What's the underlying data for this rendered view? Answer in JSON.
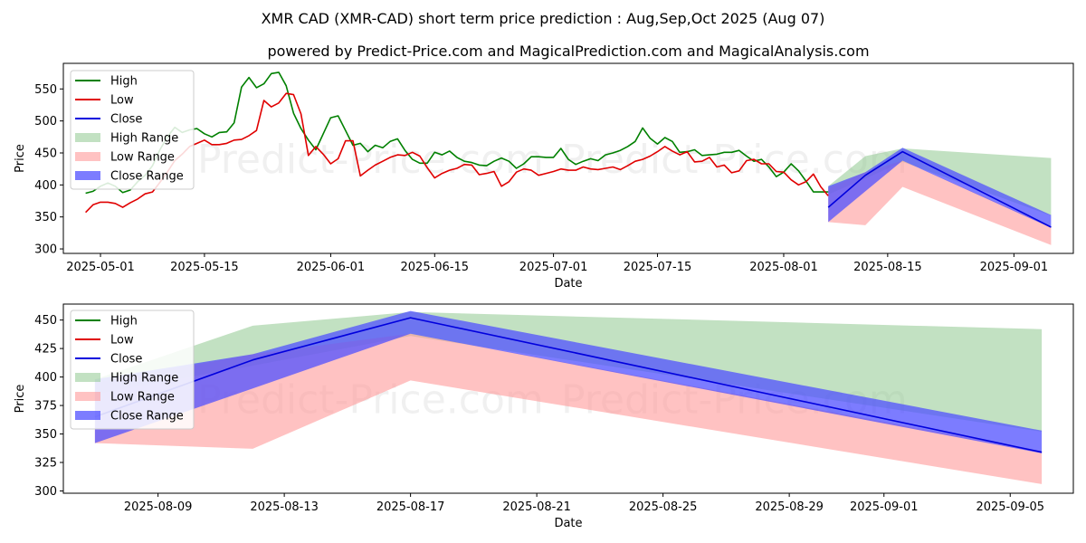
{
  "chart_data": [
    {
      "type": "line",
      "title": "XMR CAD (XMR-CAD) short term price prediction : Aug,Sep,Oct 2025 (Aug 07)",
      "subtitle": "powered by Predict-Price.com and MagicalPrediction.com and MagicalAnalysis.com",
      "watermark": "Predict-Price.com",
      "xlabel": "Date",
      "ylabel": "Price",
      "xlim": [
        "2025-04-26",
        "2025-09-09"
      ],
      "ylim": [
        293,
        590
      ],
      "xticks": [
        "2025-05-01",
        "2025-05-15",
        "2025-06-01",
        "2025-06-15",
        "2025-07-01",
        "2025-07-15",
        "2025-08-01",
        "2025-08-15",
        "2025-09-01"
      ],
      "yticks": [
        300,
        350,
        400,
        450,
        500,
        550
      ],
      "legend": {
        "position": "top-left",
        "entries": [
          "High",
          "Low",
          "Close",
          "High Range",
          "Low Range",
          "Close Range"
        ]
      },
      "colors": {
        "high": "#008000",
        "low": "#e00000",
        "close": "#0000dd",
        "high_range": "#8fc98f",
        "low_range": "#ff9a9a",
        "close_range": "#5050ff"
      },
      "series": [
        {
          "name": "High",
          "dates": [
            "2025-04-29",
            "2025-04-30",
            "2025-05-01",
            "2025-05-02",
            "2025-05-03",
            "2025-05-04",
            "2025-05-05",
            "2025-05-06",
            "2025-05-07",
            "2025-05-08",
            "2025-05-09",
            "2025-05-10",
            "2025-05-11",
            "2025-05-12",
            "2025-05-13",
            "2025-05-14",
            "2025-05-15",
            "2025-05-16",
            "2025-05-17",
            "2025-05-18",
            "2025-05-19",
            "2025-05-20",
            "2025-05-21",
            "2025-05-22",
            "2025-05-23",
            "2025-05-24",
            "2025-05-25",
            "2025-05-26",
            "2025-05-27",
            "2025-05-28",
            "2025-05-29",
            "2025-05-30",
            "2025-05-31",
            "2025-06-01",
            "2025-06-02",
            "2025-06-03",
            "2025-06-04",
            "2025-06-05",
            "2025-06-06",
            "2025-06-07",
            "2025-06-08",
            "2025-06-09",
            "2025-06-10",
            "2025-06-11",
            "2025-06-12",
            "2025-06-13",
            "2025-06-14",
            "2025-06-15",
            "2025-06-16",
            "2025-06-17",
            "2025-06-18",
            "2025-06-19",
            "2025-06-20",
            "2025-06-21",
            "2025-06-22",
            "2025-06-23",
            "2025-06-24",
            "2025-06-25",
            "2025-06-26",
            "2025-06-27",
            "2025-06-28",
            "2025-06-29",
            "2025-06-30",
            "2025-07-01",
            "2025-07-02",
            "2025-07-03",
            "2025-07-04",
            "2025-07-05",
            "2025-07-06",
            "2025-07-07",
            "2025-07-08",
            "2025-07-09",
            "2025-07-10",
            "2025-07-11",
            "2025-07-12",
            "2025-07-13",
            "2025-07-14",
            "2025-07-15",
            "2025-07-16",
            "2025-07-17",
            "2025-07-18",
            "2025-07-19",
            "2025-07-20",
            "2025-07-21",
            "2025-07-22",
            "2025-07-23",
            "2025-07-24",
            "2025-07-25",
            "2025-07-26",
            "2025-07-27",
            "2025-07-28",
            "2025-07-29",
            "2025-07-30",
            "2025-07-31",
            "2025-08-01",
            "2025-08-02",
            "2025-08-03",
            "2025-08-04",
            "2025-08-05",
            "2025-08-06",
            "2025-08-07"
          ],
          "values": [
            387,
            390,
            398,
            403,
            398,
            388,
            392,
            405,
            415,
            430,
            455,
            475,
            490,
            482,
            486,
            488,
            480,
            475,
            482,
            483,
            497,
            553,
            568,
            552,
            558,
            574,
            576,
            555,
            512,
            488,
            470,
            455,
            480,
            505,
            508,
            485,
            462,
            465,
            452,
            462,
            458,
            468,
            472,
            454,
            440,
            434,
            434,
            451,
            447,
            453,
            443,
            437,
            435,
            431,
            430,
            437,
            442,
            437,
            426,
            433,
            444,
            444,
            443,
            443,
            457,
            440,
            432,
            437,
            441,
            438,
            447,
            450,
            454,
            460,
            468,
            489,
            473,
            464,
            474,
            468,
            451,
            452,
            455,
            446,
            447,
            448,
            451,
            451,
            454,
            445,
            437,
            440,
            428,
            413,
            420,
            433,
            422,
            406,
            389,
            389,
            389
          ]
        },
        {
          "name": "Low",
          "dates": [
            "2025-04-29",
            "2025-04-30",
            "2025-05-01",
            "2025-05-02",
            "2025-05-03",
            "2025-05-04",
            "2025-05-05",
            "2025-05-06",
            "2025-05-07",
            "2025-05-08",
            "2025-05-09",
            "2025-05-10",
            "2025-05-11",
            "2025-05-12",
            "2025-05-13",
            "2025-05-14",
            "2025-05-15",
            "2025-05-16",
            "2025-05-17",
            "2025-05-18",
            "2025-05-19",
            "2025-05-20",
            "2025-05-21",
            "2025-05-22",
            "2025-05-23",
            "2025-05-24",
            "2025-05-25",
            "2025-05-26",
            "2025-05-27",
            "2025-05-28",
            "2025-05-29",
            "2025-05-30",
            "2025-05-31",
            "2025-06-01",
            "2025-06-02",
            "2025-06-03",
            "2025-06-04",
            "2025-06-05",
            "2025-06-06",
            "2025-06-07",
            "2025-06-08",
            "2025-06-09",
            "2025-06-10",
            "2025-06-11",
            "2025-06-12",
            "2025-06-13",
            "2025-06-14",
            "2025-06-15",
            "2025-06-16",
            "2025-06-17",
            "2025-06-18",
            "2025-06-19",
            "2025-06-20",
            "2025-06-21",
            "2025-06-22",
            "2025-06-23",
            "2025-06-24",
            "2025-06-25",
            "2025-06-26",
            "2025-06-27",
            "2025-06-28",
            "2025-06-29",
            "2025-06-30",
            "2025-07-01",
            "2025-07-02",
            "2025-07-03",
            "2025-07-04",
            "2025-07-05",
            "2025-07-06",
            "2025-07-07",
            "2025-07-08",
            "2025-07-09",
            "2025-07-10",
            "2025-07-11",
            "2025-07-12",
            "2025-07-13",
            "2025-07-14",
            "2025-07-15",
            "2025-07-16",
            "2025-07-17",
            "2025-07-18",
            "2025-07-19",
            "2025-07-20",
            "2025-07-21",
            "2025-07-22",
            "2025-07-23",
            "2025-07-24",
            "2025-07-25",
            "2025-07-26",
            "2025-07-27",
            "2025-07-28",
            "2025-07-29",
            "2025-07-30",
            "2025-07-31",
            "2025-08-01",
            "2025-08-02",
            "2025-08-03",
            "2025-08-04",
            "2025-08-05",
            "2025-08-06",
            "2025-08-07"
          ],
          "values": [
            357,
            369,
            373,
            373,
            371,
            365,
            372,
            378,
            386,
            389,
            404,
            420,
            438,
            448,
            460,
            465,
            470,
            463,
            463,
            465,
            470,
            471,
            477,
            485,
            532,
            522,
            528,
            543,
            541,
            511,
            446,
            460,
            448,
            433,
            441,
            469,
            469,
            414,
            423,
            431,
            437,
            443,
            447,
            446,
            451,
            445,
            427,
            411,
            418,
            423,
            426,
            432,
            431,
            416,
            418,
            421,
            398,
            405,
            420,
            425,
            423,
            415,
            418,
            421,
            425,
            423,
            423,
            428,
            425,
            424,
            426,
            428,
            424,
            430,
            437,
            440,
            445,
            452,
            460,
            453,
            447,
            452,
            436,
            437,
            443,
            428,
            431,
            419,
            422,
            438,
            440,
            433,
            433,
            421,
            420,
            408,
            400,
            405,
            417,
            397,
            383
          ]
        },
        {
          "name": "Close",
          "dates": [
            "2025-08-07",
            "2025-08-12",
            "2025-08-17",
            "2025-09-06"
          ],
          "values": [
            365,
            415,
            452,
            334
          ]
        },
        {
          "name": "High Range",
          "dates": [
            "2025-08-07",
            "2025-08-12",
            "2025-08-17",
            "2025-09-06"
          ],
          "upper": [
            398,
            445,
            457,
            442
          ],
          "lower": [
            385,
            410,
            436,
            352
          ]
        },
        {
          "name": "Low Range",
          "dates": [
            "2025-08-07",
            "2025-08-12",
            "2025-08-17",
            "2025-09-06"
          ],
          "upper": [
            395,
            420,
            438,
            335
          ],
          "lower": [
            342,
            337,
            397,
            306
          ]
        },
        {
          "name": "Close Range",
          "dates": [
            "2025-08-07",
            "2025-08-12",
            "2025-08-17",
            "2025-09-06"
          ],
          "upper": [
            398,
            420,
            458,
            353
          ],
          "lower": [
            342,
            390,
            438,
            333
          ]
        }
      ]
    },
    {
      "type": "line",
      "title": "",
      "watermark": "Predict-Price.com",
      "xlabel": "Date",
      "ylabel": "Price",
      "xlim": [
        "2025-08-06",
        "2025-09-07"
      ],
      "ylim": [
        298,
        464
      ],
      "xticks": [
        "2025-08-09",
        "2025-08-13",
        "2025-08-17",
        "2025-08-21",
        "2025-08-25",
        "2025-08-29",
        "2025-09-01",
        "2025-09-05"
      ],
      "yticks": [
        300,
        325,
        350,
        375,
        400,
        425,
        450
      ],
      "legend": {
        "position": "top-left",
        "entries": [
          "High",
          "Low",
          "Close",
          "High Range",
          "Low Range",
          "Close Range"
        ]
      },
      "colors": {
        "high": "#008000",
        "low": "#e00000",
        "close": "#0000dd",
        "high_range": "#8fc98f",
        "low_range": "#ff9a9a",
        "close_range": "#5050ff"
      },
      "series": [
        {
          "name": "Close",
          "dates": [
            "2025-08-07",
            "2025-08-12",
            "2025-08-17",
            "2025-09-06"
          ],
          "values": [
            365,
            415,
            452,
            334
          ]
        },
        {
          "name": "High Range",
          "dates": [
            "2025-08-07",
            "2025-08-12",
            "2025-08-17",
            "2025-09-06"
          ],
          "upper": [
            398,
            445,
            457,
            442
          ],
          "lower": [
            385,
            410,
            436,
            352
          ]
        },
        {
          "name": "Low Range",
          "dates": [
            "2025-08-07",
            "2025-08-12",
            "2025-08-17",
            "2025-09-06"
          ],
          "upper": [
            395,
            420,
            438,
            335
          ],
          "lower": [
            342,
            337,
            397,
            306
          ]
        },
        {
          "name": "Close Range",
          "dates": [
            "2025-08-07",
            "2025-08-12",
            "2025-08-17",
            "2025-09-06"
          ],
          "upper": [
            398,
            420,
            458,
            353
          ],
          "lower": [
            342,
            390,
            438,
            333
          ]
        }
      ]
    }
  ]
}
